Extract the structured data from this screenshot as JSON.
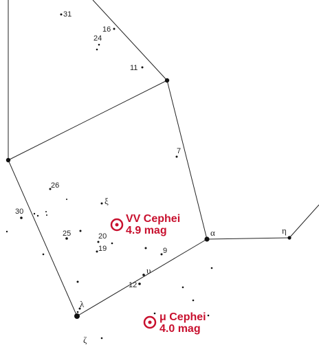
{
  "labels": [
    "31",
    "16",
    "24",
    "11",
    "7",
    "26",
    "ξ",
    "30",
    "25",
    "20",
    "19",
    "9",
    "α",
    "η",
    "υ",
    "12",
    "λ",
    "ζ"
  ],
  "targets": [
    {
      "name": "VV Cephei",
      "magnitude": "4.9 mag"
    },
    {
      "name": "μ Cephei",
      "magnitude": "4.0 mag"
    }
  ]
}
